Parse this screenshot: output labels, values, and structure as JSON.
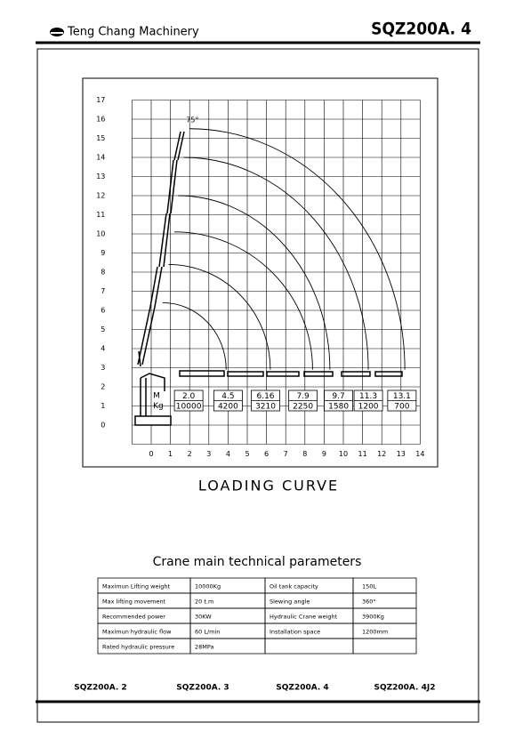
{
  "header": {
    "company": "Teng Chang Machinery",
    "model": "SQZ200A. 4"
  },
  "chart_data": {
    "type": "loading-curve",
    "title": "LOADING CURVE",
    "annotation": "75°",
    "xlim": [
      -1,
      14
    ],
    "ylim": [
      -1,
      17
    ],
    "xticks": [
      0,
      1,
      2,
      3,
      4,
      5,
      6,
      7,
      8,
      9,
      10,
      11,
      12,
      13,
      14
    ],
    "yticks": [
      0,
      1,
      2,
      3,
      4,
      5,
      6,
      7,
      8,
      9,
      10,
      11,
      12,
      13,
      14,
      15,
      16,
      17
    ],
    "grid": true,
    "arcs": [
      {
        "x": [
          2.0,
          13.2
        ],
        "y": [
          15.5,
          2.9
        ]
      },
      {
        "x": [
          1.7,
          11.3
        ],
        "y": [
          14.0,
          2.9
        ]
      },
      {
        "x": [
          1.4,
          9.3
        ],
        "y": [
          12.0,
          2.9
        ]
      },
      {
        "x": [
          1.2,
          8.4
        ],
        "y": [
          10.1,
          2.9
        ]
      },
      {
        "x": [
          0.9,
          6.2
        ],
        "y": [
          8.4,
          2.9
        ]
      },
      {
        "x": [
          0.6,
          3.9
        ],
        "y": [
          6.4,
          2.9
        ]
      }
    ],
    "load_table": {
      "row_labels": [
        "M",
        "Kg"
      ],
      "reach": [
        "2.0",
        "4.5",
        "6.16",
        "7.9",
        "9.7",
        "11.3",
        "13.1"
      ],
      "load": [
        "10000",
        "4200",
        "3210",
        "2250",
        "1580",
        "1200",
        "700"
      ]
    }
  },
  "table": {
    "title": "Crane main technical parameters",
    "rows": [
      [
        "Maximun  Lifting  weight",
        "10000Kg",
        "Oil  tank  capacity",
        "150L"
      ],
      [
        "Max  lifting  movement",
        "20  t.m",
        "Slewing  angle",
        "360°"
      ],
      [
        "Recommended  power",
        "30KW",
        "Hydraulic  Crane  weight",
        "3900Kg"
      ],
      [
        "Maximun  hydraulic  flow",
        "60  L/min",
        "Installation    space",
        "1200mm"
      ],
      [
        "Rated  hydraulic  pressure",
        "28MPa"
      ]
    ]
  },
  "footer": {
    "models": [
      "SQZ200A. 2",
      "SQZ200A. 3",
      "SQZ200A. 4",
      "SQZ200A. 4J2"
    ]
  }
}
